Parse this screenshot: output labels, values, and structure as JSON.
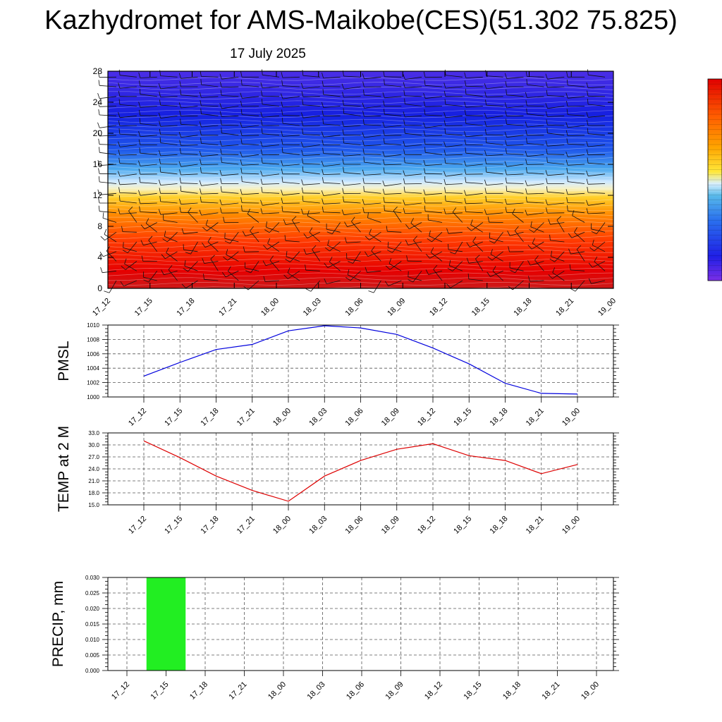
{
  "title": "Kazhydromet for AMS-Maikobe(CES)(51.302 75.825)",
  "subtitle": "17 July 2025",
  "colors": {
    "pmsl_line": "#0000dd",
    "temp_line": "#dd0000",
    "precip_bar": "#22ee22",
    "colorbar": [
      "#7b2fe6",
      "#1f1fe6",
      "#2a70ee",
      "#57b9ea",
      "#d8efff",
      "#ffe83a",
      "#ffa500",
      "#ff5a00",
      "#e00000"
    ]
  },
  "chart_data": [
    {
      "type": "heatmap",
      "name": "vertical-section",
      "x": [
        "17_12",
        "17_15",
        "17_18",
        "17_21",
        "18_00",
        "18_03",
        "18_06",
        "18_09",
        "18_12",
        "18_15",
        "18_18",
        "18_21",
        "19_00"
      ],
      "ylim": [
        0,
        28
      ],
      "yticks": [
        "0",
        "4",
        "8",
        "12",
        "16",
        "20",
        "24",
        "28"
      ],
      "description_shading": "temperature-like field: red near surface, white/yellow near 13, blue to violet aloft",
      "wind_barbs": true
    },
    {
      "type": "line",
      "name": "pmsl",
      "ylabel": "PMSL",
      "x": [
        "17_12",
        "17_15",
        "17_18",
        "17_21",
        "18_00",
        "18_03",
        "18_06",
        "18_09",
        "18_12",
        "18_15",
        "18_18",
        "18_21",
        "19_00"
      ],
      "values": [
        1002.9,
        1004.8,
        1006.6,
        1007.3,
        1009.2,
        1009.9,
        1009.6,
        1008.7,
        1006.8,
        1004.6,
        1001.9,
        1000.5,
        1000.4
      ],
      "ylim": [
        1000,
        1010
      ],
      "yticks": [
        "1000",
        "1002",
        "1004",
        "1006",
        "1008",
        "1010"
      ],
      "grid": true
    },
    {
      "type": "line",
      "name": "temp",
      "ylabel": "TEMP at 2 M",
      "x": [
        "17_12",
        "17_15",
        "17_18",
        "17_21",
        "18_00",
        "18_03",
        "18_06",
        "18_09",
        "18_12",
        "18_15",
        "18_18",
        "18_21",
        "19_00"
      ],
      "values": [
        31.0,
        26.8,
        22.2,
        18.6,
        15.9,
        22.2,
        26.1,
        28.9,
        30.3,
        27.3,
        26.1,
        22.8,
        25.1
      ],
      "ylim": [
        15,
        33
      ],
      "yticks": [
        "15.0",
        "18.0",
        "21.0",
        "24.0",
        "27.0",
        "30.0",
        "33.0"
      ],
      "grid": true
    },
    {
      "type": "bar",
      "name": "precip",
      "ylabel": "PRECIP, mm",
      "categories": [
        "17_12",
        "17_15",
        "17_18",
        "17_21",
        "18_00",
        "18_03",
        "18_06",
        "18_09",
        "18_12",
        "18_15",
        "18_18",
        "18_21",
        "19_00"
      ],
      "values": [
        0,
        0.03,
        0,
        0,
        0,
        0,
        0,
        0,
        0,
        0,
        0,
        0,
        0
      ],
      "ylim": [
        0,
        0.03
      ],
      "yticks": [
        "0.000",
        "0.005",
        "0.010",
        "0.015",
        "0.020",
        "0.025",
        "0.030"
      ],
      "grid": true
    }
  ]
}
